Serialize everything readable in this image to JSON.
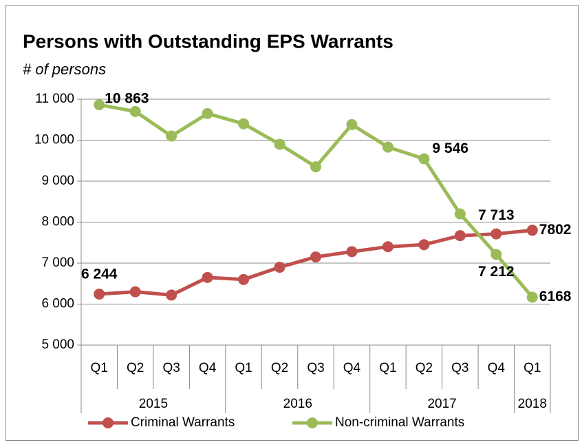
{
  "chart_data": {
    "type": "line",
    "title": "Persons with Outstanding EPS Warrants",
    "subtitle": "# of persons",
    "categories": [
      "Q1",
      "Q2",
      "Q3",
      "Q4",
      "Q1",
      "Q2",
      "Q3",
      "Q4",
      "Q1",
      "Q2",
      "Q3",
      "Q4",
      "Q1"
    ],
    "groups": [
      {
        "label": "2015",
        "span": 4
      },
      {
        "label": "2016",
        "span": 4
      },
      {
        "label": "2017",
        "span": 4
      },
      {
        "label": "2018",
        "span": 1
      }
    ],
    "ylim": [
      5000,
      11000
    ],
    "yticks": [
      {
        "value": 5000,
        "label": "5 000"
      },
      {
        "value": 6000,
        "label": "6 000"
      },
      {
        "value": 7000,
        "label": "7 000"
      },
      {
        "value": 8000,
        "label": "8 000"
      },
      {
        "value": 9000,
        "label": "9 000"
      },
      {
        "value": 10000,
        "label": "10 000"
      },
      {
        "value": 11000,
        "label": "11 000"
      }
    ],
    "grid": true,
    "legend": "bottom",
    "series": [
      {
        "name": "Criminal Warrants",
        "color": "#c0504d",
        "values": [
          6244,
          6300,
          6220,
          6650,
          6600,
          6900,
          7150,
          7280,
          7400,
          7450,
          7670,
          7713,
          7802
        ],
        "value_labels": [
          "6 244",
          null,
          null,
          null,
          null,
          null,
          null,
          null,
          null,
          null,
          null,
          "7 713",
          "7802"
        ]
      },
      {
        "name": "Non-criminal Warrants",
        "color": "#9bbb59",
        "values": [
          10863,
          10700,
          10100,
          10650,
          10400,
          9900,
          9350,
          10380,
          9830,
          9546,
          8200,
          7212,
          6168
        ],
        "value_labels": [
          "10 863",
          null,
          null,
          null,
          null,
          null,
          null,
          null,
          null,
          "9 546",
          null,
          "7 212",
          "6168"
        ]
      }
    ]
  }
}
